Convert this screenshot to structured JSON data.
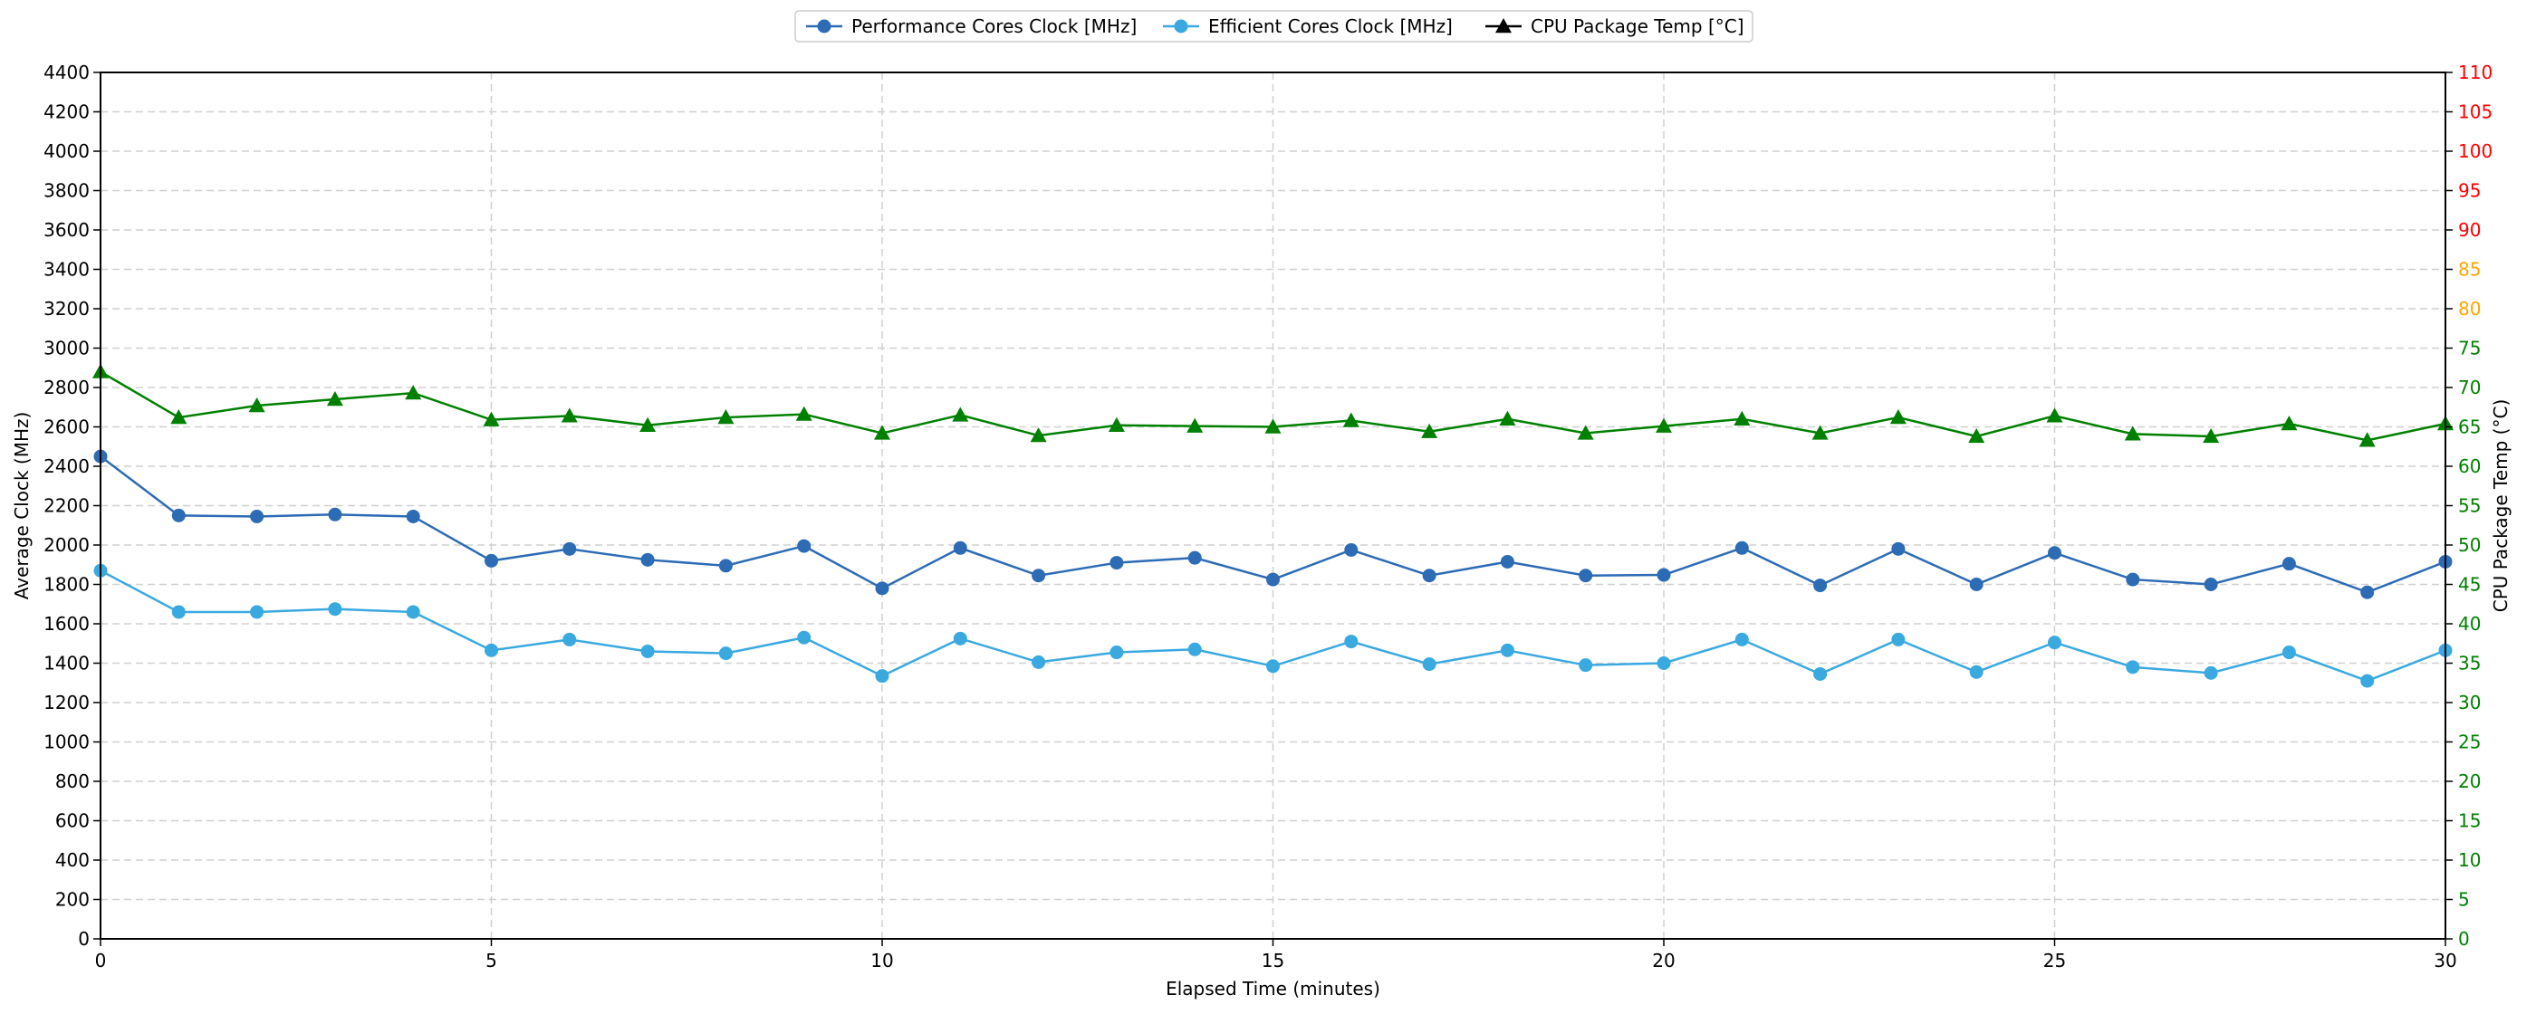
{
  "chart_data": {
    "type": "line",
    "xlabel": "Elapsed Time (minutes)",
    "ylabel": "Average Clock (MHz)",
    "y2label": "CPU Package Temp (°C)",
    "xlim": [
      0,
      30
    ],
    "ylim": [
      0,
      4400
    ],
    "y2lim": [
      0,
      110
    ],
    "x_ticks": [
      0,
      5,
      10,
      15,
      20,
      25,
      30
    ],
    "y_ticks": [
      0,
      200,
      400,
      600,
      800,
      1000,
      1200,
      1400,
      1600,
      1800,
      2000,
      2200,
      2400,
      2600,
      2800,
      3000,
      3200,
      3400,
      3600,
      3800,
      4000,
      4200,
      4400
    ],
    "y2_ticks": [
      0,
      5,
      10,
      15,
      20,
      25,
      30,
      35,
      40,
      45,
      50,
      55,
      60,
      65,
      70,
      75,
      80,
      85,
      90,
      95,
      100,
      105,
      110
    ],
    "y2_tick_colors": {
      "green": "#008000",
      "orange": "#FFA500",
      "red": "#FF0000"
    },
    "y2_color_thresholds": {
      "orange_from": 80,
      "red_from": 90
    },
    "grid": true,
    "legend_position": "top-center",
    "x": [
      0,
      1,
      2,
      3,
      4,
      5,
      6,
      7,
      8,
      9,
      10,
      11,
      12,
      13,
      14,
      15,
      16,
      17,
      18,
      19,
      20,
      21,
      22,
      23,
      24,
      25,
      26,
      27,
      28,
      29,
      30
    ],
    "series": [
      {
        "name": "Performance Cores Clock [MHz]",
        "axis": "left",
        "color": "#2D6BB5",
        "marker": "circle",
        "values": [
          2450,
          2150,
          2145,
          2155,
          2145,
          1920,
          1980,
          1925,
          1895,
          1995,
          1780,
          1985,
          1845,
          1910,
          1935,
          1825,
          1975,
          1845,
          1915,
          1845,
          1848,
          1985,
          1795,
          1980,
          1800,
          1960,
          1825,
          1800,
          1905,
          1760,
          1915
        ]
      },
      {
        "name": "Efficient Cores Clock [MHz]",
        "axis": "left",
        "color": "#3AA9E0",
        "marker": "circle",
        "values": [
          1870,
          1660,
          1660,
          1675,
          1660,
          1465,
          1520,
          1460,
          1450,
          1530,
          1335,
          1525,
          1405,
          1455,
          1470,
          1385,
          1510,
          1395,
          1465,
          1390,
          1400,
          1520,
          1345,
          1520,
          1355,
          1505,
          1380,
          1350,
          1455,
          1310,
          1465
        ]
      },
      {
        "name": "CPU Package Temp [°C]",
        "axis": "right",
        "color": "#008000",
        "legend_color": "#000000",
        "marker": "triangle",
        "values": [
          72,
          66.2,
          67.7,
          68.5,
          69.3,
          65.9,
          66.4,
          65.2,
          66.2,
          66.6,
          64.2,
          66.5,
          63.9,
          65.2,
          65.1,
          65.0,
          65.8,
          64.4,
          66.0,
          64.2,
          65.1,
          66.0,
          64.2,
          66.2,
          63.8,
          66.4,
          64.1,
          63.8,
          65.4,
          63.3,
          65.4
        ]
      }
    ]
  }
}
